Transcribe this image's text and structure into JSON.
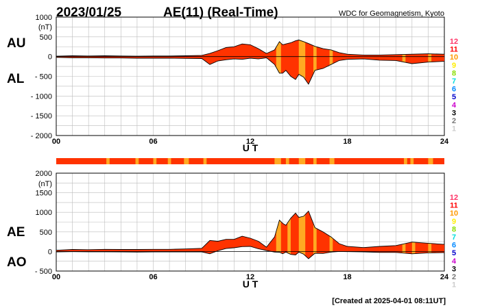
{
  "header": {
    "date": "2023/01/25",
    "title": "AE(11) (Real-Time)",
    "source": "WDC for Geomagnetism, Kyoto"
  },
  "footer": {
    "created": "[Created at 2025-04-01 08:11UT]"
  },
  "colors": {
    "fill": "#ff3300",
    "highlight": "#ffaa22",
    "grid": "#bbbbbb"
  },
  "station_scale": [
    {
      "label": "12",
      "color": "#ff3366"
    },
    {
      "label": "11",
      "color": "#ff0000"
    },
    {
      "label": "10",
      "color": "#ff9900"
    },
    {
      "label": "9",
      "color": "#ffee00"
    },
    {
      "label": "8",
      "color": "#88dd00"
    },
    {
      "label": "7",
      "color": "#00dddd"
    },
    {
      "label": "6",
      "color": "#0088ff"
    },
    {
      "label": "5",
      "color": "#0000cc"
    },
    {
      "label": "4",
      "color": "#cc00cc"
    },
    {
      "label": "3",
      "color": "#000000"
    },
    {
      "label": "2",
      "color": "#777777"
    },
    {
      "label": "1",
      "color": "#cccccc"
    }
  ],
  "station_bar": {
    "base_color": "#ff3300",
    "segments": [
      {
        "start": 3.1,
        "end": 3.3
      },
      {
        "start": 4.9,
        "end": 5.1
      },
      {
        "start": 6.0,
        "end": 6.2
      },
      {
        "start": 6.9,
        "end": 7.1
      },
      {
        "start": 7.9,
        "end": 8.2
      },
      {
        "start": 9.1,
        "end": 9.3
      },
      {
        "start": 13.5,
        "end": 13.9
      },
      {
        "start": 14.2,
        "end": 14.4
      },
      {
        "start": 15.0,
        "end": 15.4
      },
      {
        "start": 15.9,
        "end": 16.1
      },
      {
        "start": 16.9,
        "end": 17.2
      },
      {
        "start": 21.5,
        "end": 21.7
      },
      {
        "start": 21.9,
        "end": 22.1
      },
      {
        "start": 23.0,
        "end": 23.3
      }
    ]
  },
  "chart_data": [
    {
      "type": "area",
      "name": "AU/AL",
      "labels": [
        "AU",
        "AL"
      ],
      "unit": "(nT)",
      "xlabel": "U T",
      "x_ticks": [
        0,
        6,
        12,
        18,
        24
      ],
      "x_tick_labels": [
        "00",
        "06",
        "12",
        "18",
        "24"
      ],
      "xlim": [
        0,
        24
      ],
      "ylim": [
        -2000,
        1000
      ],
      "y_ticks": [
        1000,
        500,
        0,
        -500,
        -1000,
        -1500,
        -2000
      ],
      "y_tick_labels": [
        "1000",
        "500",
        "0",
        "- 500",
        "- 1000",
        "- 1500",
        "- 2000"
      ],
      "x": [
        0,
        1,
        2,
        3,
        4,
        5,
        6,
        7,
        8,
        9,
        9.5,
        10,
        10.5,
        11,
        11.5,
        12,
        12.5,
        13,
        13.5,
        13.8,
        14,
        14.2,
        14.5,
        14.8,
        15,
        15.3,
        15.6,
        16,
        16.5,
        17,
        17.5,
        18,
        19,
        20,
        21,
        22,
        23,
        24
      ],
      "series": [
        {
          "name": "AU",
          "values": [
            10,
            20,
            15,
            20,
            15,
            10,
            15,
            15,
            20,
            30,
            80,
            150,
            230,
            250,
            320,
            300,
            200,
            80,
            170,
            380,
            300,
            320,
            350,
            400,
            420,
            380,
            330,
            260,
            200,
            170,
            100,
            60,
            40,
            40,
            50,
            60,
            70,
            60
          ]
        },
        {
          "name": "AL",
          "values": [
            -20,
            -30,
            -30,
            -35,
            -35,
            -40,
            -40,
            -40,
            -45,
            -50,
            -200,
            -110,
            -80,
            -60,
            -70,
            -40,
            -60,
            -30,
            -200,
            -420,
            -420,
            -350,
            -500,
            -580,
            -450,
            -520,
            -700,
            -350,
            -300,
            -200,
            -100,
            -70,
            -60,
            -90,
            -100,
            -180,
            -140,
            -120
          ]
        }
      ],
      "highlights": [
        {
          "start": 13.6,
          "end": 13.9
        },
        {
          "start": 15.0,
          "end": 15.4
        },
        {
          "start": 15.9,
          "end": 16.1
        },
        {
          "start": 16.9,
          "end": 17.1
        },
        {
          "start": 21.4,
          "end": 21.6
        },
        {
          "start": 23.0,
          "end": 23.2
        }
      ]
    },
    {
      "type": "area",
      "name": "AE/AO",
      "labels": [
        "AE",
        "AO"
      ],
      "unit": "(nT)",
      "xlabel": "U T",
      "x_ticks": [
        0,
        6,
        12,
        18,
        24
      ],
      "x_tick_labels": [
        "00",
        "06",
        "12",
        "18",
        "24"
      ],
      "xlim": [
        0,
        24
      ],
      "ylim": [
        -500,
        2000
      ],
      "y_ticks": [
        2000,
        1500,
        1000,
        500,
        0,
        -500
      ],
      "y_tick_labels": [
        "2000",
        "1500",
        "1000",
        "500",
        "0",
        "- 500"
      ],
      "x": [
        0,
        1,
        2,
        3,
        4,
        5,
        6,
        7,
        8,
        9,
        9.5,
        10,
        10.5,
        11,
        11.5,
        12,
        12.5,
        13,
        13.5,
        13.8,
        14,
        14.2,
        14.5,
        14.8,
        15,
        15.3,
        15.6,
        16,
        16.5,
        17,
        17.5,
        18,
        19,
        20,
        21,
        22,
        23,
        24
      ],
      "series": [
        {
          "name": "AE",
          "values": [
            30,
            50,
            45,
            55,
            50,
            50,
            55,
            55,
            65,
            80,
            280,
            260,
            310,
            310,
            390,
            340,
            260,
            110,
            370,
            800,
            720,
            670,
            850,
            980,
            870,
            900,
            1030,
            610,
            500,
            370,
            200,
            130,
            100,
            130,
            150,
            240,
            210,
            180
          ]
        },
        {
          "name": "AO",
          "values": [
            -10,
            -5,
            -8,
            -8,
            -10,
            -15,
            -12,
            -12,
            -12,
            -10,
            -60,
            20,
            75,
            95,
            125,
            130,
            70,
            25,
            -15,
            -20,
            -60,
            -15,
            -75,
            -90,
            -15,
            -70,
            -185,
            -45,
            -50,
            -15,
            0,
            -5,
            -10,
            -25,
            -25,
            -60,
            -35,
            -30
          ]
        }
      ],
      "highlights": [
        {
          "start": 13.6,
          "end": 13.9
        },
        {
          "start": 14.3,
          "end": 14.5
        },
        {
          "start": 15.0,
          "end": 15.4
        },
        {
          "start": 15.9,
          "end": 16.1
        },
        {
          "start": 16.9,
          "end": 17.1
        },
        {
          "start": 21.4,
          "end": 21.6
        },
        {
          "start": 22.0,
          "end": 22.2
        },
        {
          "start": 23.0,
          "end": 23.2
        }
      ]
    }
  ]
}
